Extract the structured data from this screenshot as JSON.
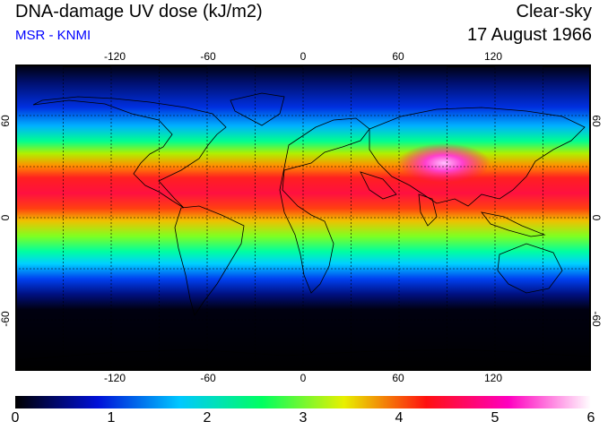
{
  "header": {
    "title": "DNA-damage UV dose (kJ/m2)",
    "subtitle": "MSR - KNMI",
    "condition": "Clear-sky",
    "date": "17 August 1966"
  },
  "map": {
    "lon_range": [
      -180,
      180
    ],
    "lat_range": [
      -90,
      90
    ],
    "lon_ticks": [
      "-120",
      "-60",
      "0",
      "60",
      "120"
    ],
    "lat_ticks": [
      "60",
      "0",
      "-60"
    ],
    "gridlines": "dashed",
    "grid_spacing_lon": 30,
    "grid_spacing_lat": 30
  },
  "colorbar": {
    "min": 0,
    "max": 6,
    "labels": [
      "0",
      "1",
      "2",
      "3",
      "4",
      "5",
      "6"
    ],
    "colors": [
      "#000000",
      "#0010d8",
      "#00c8ff",
      "#00ff60",
      "#e8f000",
      "#ff1010",
      "#ff00c0",
      "#ffffff"
    ]
  },
  "field": {
    "description_free": true,
    "band_peak_lat": 20,
    "peak_value": 5.6
  }
}
